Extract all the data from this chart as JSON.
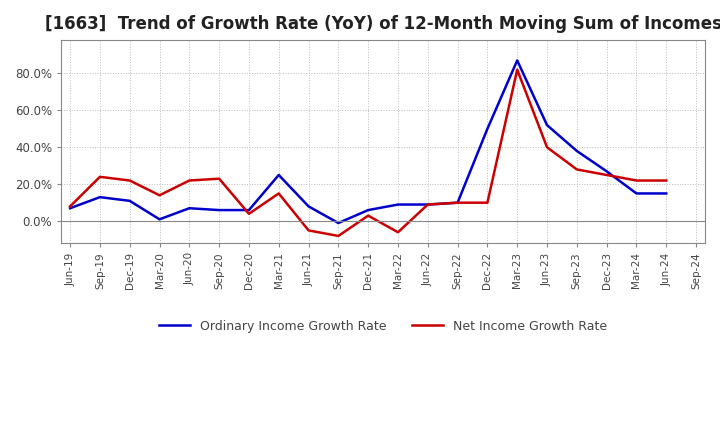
{
  "title": "[1663]  Trend of Growth Rate (YoY) of 12-Month Moving Sum of Incomes",
  "title_fontsize": 12,
  "background_color": "#ffffff",
  "grid_color": "#aaaaaa",
  "x_labels": [
    "Jun-19",
    "Sep-19",
    "Dec-19",
    "Mar-20",
    "Jun-20",
    "Sep-20",
    "Dec-20",
    "Mar-21",
    "Jun-21",
    "Sep-21",
    "Dec-21",
    "Mar-22",
    "Jun-22",
    "Sep-22",
    "Dec-22",
    "Mar-23",
    "Jun-23",
    "Sep-23",
    "Dec-23",
    "Mar-24",
    "Jun-24",
    "Sep-24"
  ],
  "ordinary_income": [
    0.07,
    0.13,
    0.11,
    0.01,
    0.07,
    0.06,
    0.06,
    0.25,
    0.08,
    -0.01,
    0.06,
    0.09,
    0.09,
    0.1,
    0.5,
    0.87,
    0.52,
    0.38,
    0.27,
    0.15,
    0.15,
    null
  ],
  "net_income": [
    0.08,
    0.24,
    0.22,
    0.14,
    0.22,
    0.23,
    0.04,
    0.15,
    -0.05,
    -0.08,
    0.03,
    -0.06,
    0.09,
    0.1,
    0.1,
    0.82,
    0.4,
    0.28,
    0.25,
    0.22,
    0.22,
    null
  ],
  "ordinary_color": "#0000cc",
  "net_color": "#cc0000",
  "line_width": 1.8,
  "legend_ordinary": "Ordinary Income Growth Rate",
  "legend_net": "Net Income Growth Rate",
  "ylim": [
    -0.12,
    0.98
  ],
  "yticks": [
    0.0,
    0.2,
    0.4,
    0.6,
    0.8
  ],
  "ytick_labels": [
    "0.0%",
    "20.0%",
    "40.0%",
    "60.0%",
    "80.0%"
  ]
}
